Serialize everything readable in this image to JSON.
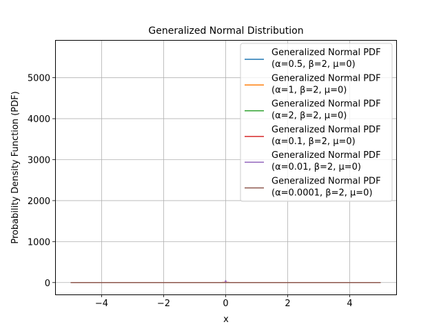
{
  "chart_data": {
    "type": "line",
    "title": "Generalized Normal Distribution",
    "xlabel": "x",
    "ylabel": "Probability Density Function (PDF)",
    "xlim": [
      -5.5,
      5.5
    ],
    "ylim": [
      -290,
      5920
    ],
    "x_ticks": [
      -4,
      -2,
      0,
      2,
      4
    ],
    "x_tick_labels": [
      "−4",
      "−2",
      "0",
      "2",
      "4"
    ],
    "y_ticks": [
      0,
      1000,
      2000,
      3000,
      4000,
      5000
    ],
    "y_tick_labels": [
      "0",
      "1000",
      "2000",
      "3000",
      "4000",
      "5000"
    ],
    "grid": true,
    "legend_position": "top-right",
    "x_range": [
      -5,
      5
    ],
    "series": [
      {
        "name": "Generalized Normal PDF\n(α=0.5, β=2, μ=0)",
        "alpha": 0.5,
        "beta": 2,
        "mu": 0,
        "color": "#1f77b4"
      },
      {
        "name": "Generalized Normal PDF\n(α=1, β=2, μ=0)",
        "alpha": 1,
        "beta": 2,
        "mu": 0,
        "color": "#ff7f0e"
      },
      {
        "name": "Generalized Normal PDF\n(α=2, β=2, μ=0)",
        "alpha": 2,
        "beta": 2,
        "mu": 0,
        "color": "#2ca02c"
      },
      {
        "name": "Generalized Normal PDF\n(α=0.1, β=2, μ=0)",
        "alpha": 0.1,
        "beta": 2,
        "mu": 0,
        "color": "#d62728"
      },
      {
        "name": "Generalized Normal PDF\n(α=0.01, β=2, μ=0)",
        "alpha": 0.01,
        "beta": 2,
        "mu": 0,
        "color": "#9467bd"
      },
      {
        "name": "Generalized Normal PDF\n(α=0.0001, β=2, μ=0)",
        "alpha": 0.0001,
        "beta": 2,
        "mu": 0,
        "color": "#8c564b"
      }
    ]
  }
}
